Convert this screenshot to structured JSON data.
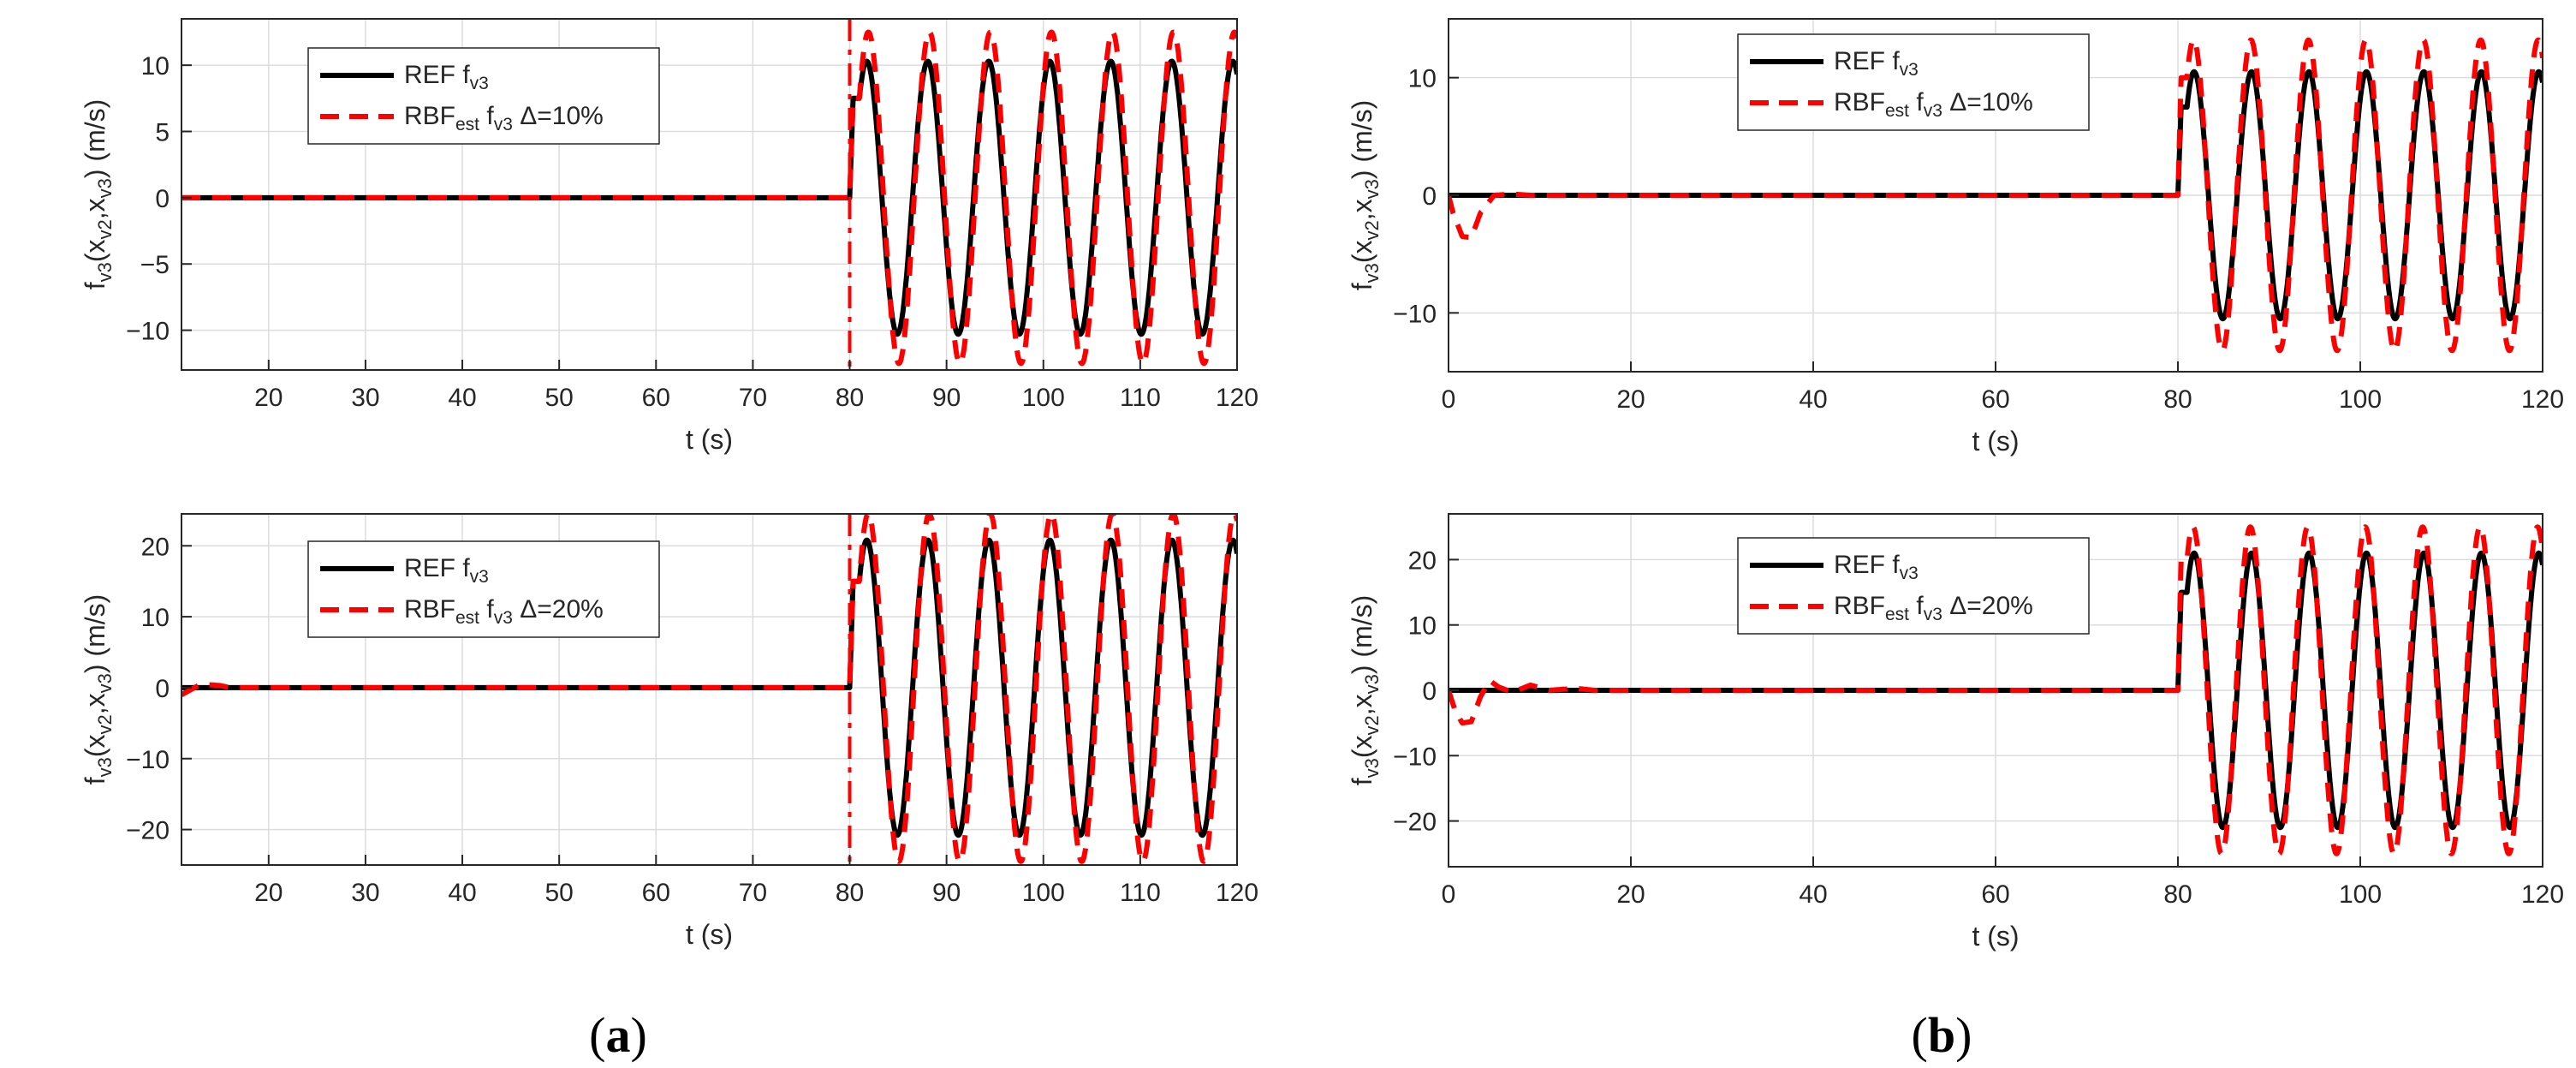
{
  "panel_labels": {
    "a": {
      "open": "(",
      "letter": "a",
      "close": ")"
    },
    "b": {
      "open": "(",
      "letter": "b",
      "close": ")"
    }
  },
  "colors": {
    "ref": "#000000",
    "est": "#ff0000",
    "grid": "#dcdcdc",
    "axis": "#262626"
  },
  "chart_data": [
    {
      "id": "a-top",
      "type": "line",
      "xlim": [
        11,
        120
      ],
      "ylim": [
        -13,
        13.5
      ],
      "xticks": [
        20,
        30,
        40,
        50,
        60,
        70,
        80,
        90,
        100,
        110,
        120
      ],
      "yticks": [
        -10,
        -5,
        0,
        5,
        10
      ],
      "xlabel": "t (s)",
      "ylabel": {
        "f": "f",
        "s1": "v3",
        "o": "(x",
        "s2": "v2",
        "c": ",x",
        "s3": "v3",
        "e": ") (m/s)"
      },
      "grid": true,
      "vline_x": 80,
      "legend": {
        "position": "top-left",
        "ref": {
          "main": "REF f",
          "sub": "v3"
        },
        "est": {
          "main": "RBF",
          "sub": "est",
          "mid": " f",
          "sub2": "v3",
          "tail": " Δ=10%"
        }
      },
      "series": [
        {
          "name": "REF f v3",
          "style": "solid",
          "color": "#000000",
          "model": {
            "t_start": 80,
            "amplitude": 10.3,
            "period": 6.3,
            "initial_peak": 7.5
          }
        },
        {
          "name": "RBF est f v3 Δ=10%",
          "style": "dashed",
          "color": "#ff0000",
          "model": {
            "t_start": 80,
            "amplitude": 12.5,
            "period": 6.3,
            "initial_peak": 7.5,
            "transient": []
          }
        }
      ]
    },
    {
      "id": "a-bottom",
      "type": "line",
      "xlim": [
        11,
        120
      ],
      "ylim": [
        -25,
        24.5
      ],
      "xticks": [
        20,
        30,
        40,
        50,
        60,
        70,
        80,
        90,
        100,
        110,
        120
      ],
      "yticks": [
        -20,
        -10,
        0,
        10,
        20
      ],
      "xlabel": "t (s)",
      "ylabel": {
        "f": "f",
        "s1": "v3",
        "o": "(x",
        "s2": "v2",
        "c": ",x",
        "s3": "v3",
        "e": ") (m/s)"
      },
      "grid": true,
      "vline_x": 80,
      "legend": {
        "position": "top-left",
        "ref": {
          "main": "REF f",
          "sub": "v3"
        },
        "est": {
          "main": "RBF",
          "sub": "est",
          "mid": " f",
          "sub2": "v3",
          "tail": " Δ=20%"
        }
      },
      "series": [
        {
          "name": "REF f v3",
          "style": "solid",
          "color": "#000000",
          "model": {
            "t_start": 80,
            "amplitude": 20.8,
            "period": 6.3,
            "initial_peak": 15
          }
        },
        {
          "name": "RBF est f v3 Δ=20%",
          "style": "dashed",
          "color": "#ff0000",
          "model": {
            "t_start": 80,
            "amplitude": 24.5,
            "period": 6.3,
            "initial_peak": 15,
            "transient": [
              [
                11,
                -1
              ],
              [
                13,
                0.5
              ],
              [
                15,
                0.3
              ],
              [
                16,
                0
              ]
            ]
          }
        }
      ]
    },
    {
      "id": "b-top",
      "type": "line",
      "xlim": [
        0,
        120
      ],
      "ylim": [
        -15,
        15
      ],
      "xticks": [
        0,
        20,
        40,
        60,
        80,
        100,
        120
      ],
      "yticks": [
        -10,
        0,
        10
      ],
      "xlabel": "t (s)",
      "ylabel": {
        "f": "f",
        "s1": "v3",
        "o": "(x",
        "s2": "v2",
        "c": ",x",
        "s3": "v3",
        "e": ") (m/s)"
      },
      "grid": true,
      "vline_x": null,
      "legend": {
        "position": "top-center",
        "ref": {
          "main": "REF f",
          "sub": "v3"
        },
        "est": {
          "main": "RBF",
          "sub": "est",
          "mid": " f",
          "sub2": "v3",
          "tail": " Δ=10%"
        }
      },
      "series": [
        {
          "name": "REF f v3",
          "style": "solid",
          "color": "#000000",
          "model": {
            "t_start": 80,
            "amplitude": 10.5,
            "period": 6.3,
            "initial_peak": 7.5
          }
        },
        {
          "name": "RBF est f v3 Δ=10%",
          "style": "dashed",
          "color": "#ff0000",
          "model": {
            "t_start": 80,
            "amplitude": 13.2,
            "period": 6.3,
            "initial_peak": 10,
            "transient": [
              [
                0,
                0
              ],
              [
                0.5,
                -1.5
              ],
              [
                1.5,
                -3.5
              ],
              [
                2.5,
                -3.6
              ],
              [
                3.5,
                -1.5
              ],
              [
                5,
                0
              ],
              [
                7,
                0.1
              ],
              [
                9,
                0
              ]
            ]
          }
        }
      ]
    },
    {
      "id": "b-bottom",
      "type": "line",
      "xlim": [
        0,
        120
      ],
      "ylim": [
        -27,
        27
      ],
      "xticks": [
        0,
        20,
        40,
        60,
        80,
        100,
        120
      ],
      "yticks": [
        -20,
        -10,
        0,
        10,
        20
      ],
      "xlabel": "t (s)",
      "ylabel": {
        "f": "f",
        "s1": "v3",
        "o": "(x",
        "s2": "v2",
        "c": ",x",
        "s3": "v3",
        "e": ") (m/s)"
      },
      "grid": true,
      "vline_x": null,
      "legend": {
        "position": "top-center",
        "ref": {
          "main": "REF f",
          "sub": "v3"
        },
        "est": {
          "main": "RBF",
          "sub": "est",
          "mid": " f",
          "sub2": "v3",
          "tail": " Δ=20%"
        }
      },
      "series": [
        {
          "name": "REF f v3",
          "style": "solid",
          "color": "#000000",
          "model": {
            "t_start": 80,
            "amplitude": 21,
            "period": 6.3,
            "initial_peak": 15
          }
        },
        {
          "name": "RBF est f v3 Δ=20%",
          "style": "dashed",
          "color": "#ff0000",
          "model": {
            "t_start": 80,
            "amplitude": 25,
            "period": 6.3,
            "initial_peak": 20,
            "transient": [
              [
                0,
                0
              ],
              [
                0.7,
                -3
              ],
              [
                1.5,
                -5
              ],
              [
                2.5,
                -4.8
              ],
              [
                3.5,
                -1
              ],
              [
                4.5,
                1.5
              ],
              [
                5.5,
                0.5
              ],
              [
                7,
                -0.3
              ],
              [
                9,
                0.8
              ],
              [
                11,
                0
              ],
              [
                14,
                0.3
              ],
              [
                16,
                0
              ]
            ]
          }
        }
      ]
    }
  ]
}
